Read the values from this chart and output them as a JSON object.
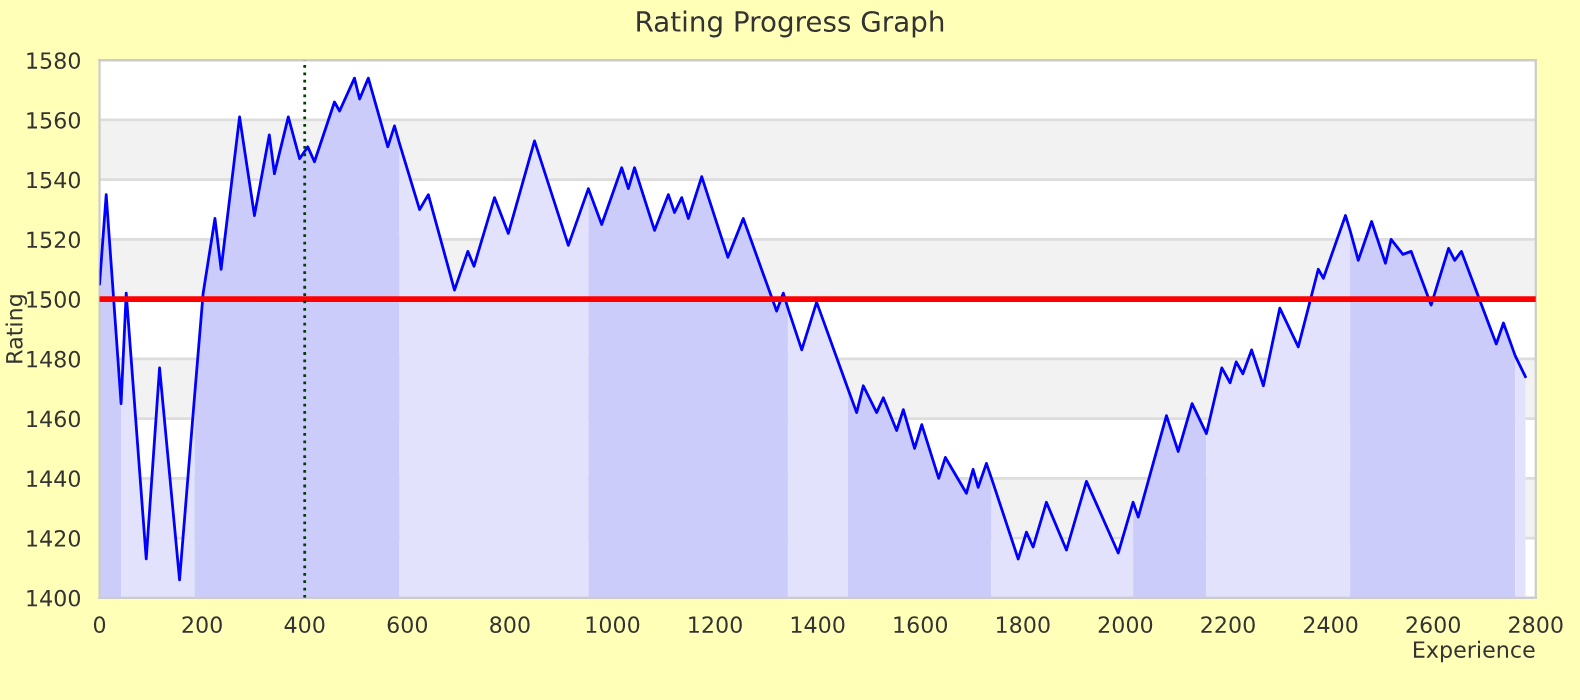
{
  "chart_data": {
    "type": "line",
    "title": "Rating Progress Graph",
    "xlabel": "Experience",
    "ylabel": "Rating",
    "xlim": [
      0,
      2800
    ],
    "xticks": [
      0,
      200,
      400,
      600,
      800,
      1000,
      1200,
      1400,
      1600,
      1800,
      2000,
      2200,
      2400,
      2600,
      2800
    ],
    "ylim": [
      1400,
      1580
    ],
    "yticks": [
      1400,
      1420,
      1440,
      1460,
      1480,
      1500,
      1520,
      1540,
      1560,
      1580
    ],
    "grid": "y",
    "legend": false,
    "marker": "none",
    "line_style": "solid",
    "ref_lines": [
      {
        "axis": "y",
        "value": 1500,
        "color": "#ff0000",
        "line_style": "solid"
      },
      {
        "axis": "x",
        "value": 400,
        "color": "#004000",
        "line_style": "dotted"
      }
    ],
    "series": [
      {
        "type": "area",
        "color": "#ccccfa",
        "x": [
          0,
          13,
          42
        ],
        "values": [
          1505,
          1535,
          1465
        ]
      },
      {
        "type": "area",
        "color": "#e2e2fc",
        "x": [
          42,
          52,
          91,
          117,
          156,
          185
        ],
        "values": [
          1465,
          1502,
          1413,
          1477,
          1406,
          1467
        ]
      },
      {
        "type": "area",
        "color": "#ccccfa",
        "x": [
          185,
          202,
          225,
          237,
          273,
          302,
          331,
          341,
          368,
          390,
          406,
          419,
          458,
          468,
          497,
          507,
          524,
          562,
          575,
          585
        ],
        "values": [
          1467,
          1502,
          1527,
          1510,
          1561,
          1528,
          1555,
          1542,
          1561,
          1547,
          1551,
          1546,
          1566,
          1563,
          1574,
          1567,
          1574,
          1551,
          1558,
          1552
        ]
      },
      {
        "type": "area",
        "color": "#e2e2fc",
        "x": [
          585,
          624,
          641,
          692,
          718,
          730,
          770,
          797,
          848,
          914,
          953
        ],
        "values": [
          1552,
          1530,
          1535,
          1503,
          1516,
          1511,
          1534,
          1522,
          1553,
          1518,
          1537
        ]
      },
      {
        "type": "area",
        "color": "#ccccfa",
        "x": [
          953,
          979,
          1018,
          1031,
          1043,
          1082,
          1109,
          1121,
          1135,
          1148,
          1174,
          1225,
          1255,
          1320,
          1333,
          1342
        ],
        "values": [
          1537,
          1525,
          1544,
          1537,
          1544,
          1523,
          1535,
          1529,
          1534,
          1527,
          1541,
          1514,
          1527,
          1496,
          1502,
          1497
        ]
      },
      {
        "type": "area",
        "color": "#e2e2fc",
        "x": [
          1342,
          1369,
          1398,
          1459
        ],
        "values": [
          1497,
          1483,
          1499,
          1470
        ]
      },
      {
        "type": "area",
        "color": "#ccccfa",
        "x": [
          1459,
          1476,
          1489,
          1515,
          1528,
          1554,
          1567,
          1589,
          1603,
          1636,
          1649,
          1690,
          1703,
          1713,
          1729,
          1739
        ],
        "values": [
          1470,
          1462,
          1471,
          1462,
          1467,
          1456,
          1463,
          1450,
          1458,
          1440,
          1447,
          1435,
          1443,
          1437,
          1445,
          1440
        ]
      },
      {
        "type": "area",
        "color": "#e2e2fc",
        "x": [
          1739,
          1791,
          1807,
          1820,
          1846,
          1885,
          1924,
          1986,
          2015
        ],
        "values": [
          1440,
          1413,
          1422,
          1417,
          1432,
          1416,
          1439,
          1415,
          1432
        ]
      },
      {
        "type": "area",
        "color": "#ccccfa",
        "x": [
          2015,
          2025,
          2080,
          2103,
          2130,
          2158
        ],
        "values": [
          1432,
          1427,
          1461,
          1449,
          1465,
          1455
        ]
      },
      {
        "type": "area",
        "color": "#e2e2fc",
        "x": [
          2158,
          2188,
          2204,
          2216,
          2229,
          2246,
          2269,
          2301,
          2337,
          2376,
          2386,
          2429,
          2438
        ],
        "values": [
          1455,
          1477,
          1472,
          1479,
          1475,
          1483,
          1471,
          1497,
          1484,
          1510,
          1507,
          1528,
          1523
        ]
      },
      {
        "type": "area",
        "color": "#ccccfa",
        "x": [
          2438,
          2454,
          2480,
          2507,
          2518,
          2541,
          2557,
          2596,
          2630,
          2642,
          2655,
          2723,
          2737,
          2760
        ],
        "values": [
          1523,
          1513,
          1526,
          1512,
          1520,
          1515,
          1516,
          1498,
          1517,
          1513,
          1516,
          1485,
          1492,
          1481
        ]
      },
      {
        "type": "area",
        "color": "#e2e2fc",
        "x": [
          2760,
          2780
        ],
        "values": [
          1481,
          1474
        ]
      },
      {
        "color": "#0000ff",
        "x": [
          0,
          13,
          42,
          52,
          91,
          117,
          156,
          185,
          202,
          225,
          237,
          273,
          302,
          331,
          341,
          368,
          390,
          406,
          419,
          458,
          468,
          497,
          507,
          524,
          562,
          575,
          585,
          624,
          641,
          692,
          718,
          730,
          770,
          797,
          848,
          914,
          953,
          979,
          1018,
          1031,
          1043,
          1082,
          1109,
          1121,
          1135,
          1148,
          1174,
          1225,
          1255,
          1320,
          1333,
          1342,
          1369,
          1398,
          1459,
          1476,
          1489,
          1515,
          1528,
          1554,
          1567,
          1589,
          1603,
          1636,
          1649,
          1690,
          1703,
          1713,
          1729,
          1739,
          1791,
          1807,
          1820,
          1846,
          1885,
          1924,
          1986,
          2015,
          2025,
          2080,
          2103,
          2130,
          2158,
          2188,
          2204,
          2216,
          2229,
          2246,
          2269,
          2301,
          2337,
          2376,
          2386,
          2429,
          2438,
          2454,
          2480,
          2507,
          2518,
          2541,
          2557,
          2596,
          2630,
          2642,
          2655,
          2723,
          2737,
          2760,
          2780
        ],
        "values": [
          1505,
          1535,
          1465,
          1502,
          1413,
          1477,
          1406,
          1467,
          1502,
          1527,
          1510,
          1561,
          1528,
          1555,
          1542,
          1561,
          1547,
          1551,
          1546,
          1566,
          1563,
          1574,
          1567,
          1574,
          1551,
          1558,
          1552,
          1530,
          1535,
          1503,
          1516,
          1511,
          1534,
          1522,
          1553,
          1518,
          1537,
          1525,
          1544,
          1537,
          1544,
          1523,
          1535,
          1529,
          1534,
          1527,
          1541,
          1514,
          1527,
          1496,
          1502,
          1497,
          1483,
          1499,
          1470,
          1462,
          1471,
          1462,
          1467,
          1456,
          1463,
          1450,
          1458,
          1440,
          1447,
          1435,
          1443,
          1437,
          1445,
          1440,
          1413,
          1422,
          1417,
          1432,
          1416,
          1439,
          1415,
          1432,
          1427,
          1461,
          1449,
          1465,
          1455,
          1477,
          1472,
          1479,
          1475,
          1483,
          1471,
          1497,
          1484,
          1510,
          1507,
          1528,
          1523,
          1513,
          1526,
          1512,
          1520,
          1515,
          1516,
          1498,
          1517,
          1513,
          1516,
          1485,
          1492,
          1481,
          1474
        ]
      }
    ]
  }
}
